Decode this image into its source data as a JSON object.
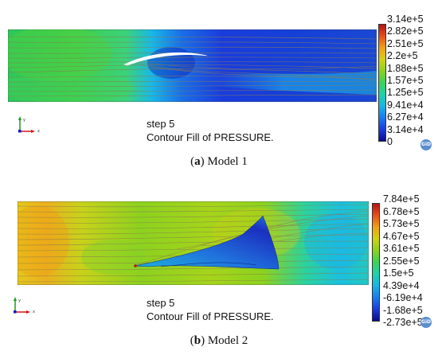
{
  "model1": {
    "step_label": "step 5",
    "contour_label": "Contour Fill of PRESSURE.",
    "colorbar_labels": [
      "3.14e+5",
      "2.82e+5",
      "2.51e+5",
      "2.2e+5",
      "1.88e+5",
      "1.57e+5",
      "1.25e+5",
      "9.41e+4",
      "6.27e+4",
      "3.14e+4",
      "0"
    ],
    "caption_letter": "a",
    "caption_text": " Model 1"
  },
  "model2": {
    "step_label": "step 5",
    "contour_label": "Contour Fill of PRESSURE.",
    "colorbar_labels": [
      "7.84e+5",
      "6.78e+5",
      "5.73e+5",
      "4.67e+5",
      "3.61e+5",
      "2.55e+5",
      "1.5e+5",
      "4.39e+4",
      "-6.19e+4",
      "-1.68e+5",
      "-2.73e+5"
    ],
    "caption_letter": "b",
    "caption_text": " Model 2"
  },
  "axis_labels": {
    "y": "y",
    "x": "x"
  },
  "logo_text": "GiD",
  "colors": {
    "colormap": [
      "#0a0a8c",
      "#1a3cdc",
      "#1a7cf0",
      "#19b4e6",
      "#1ed2a8",
      "#3cd25a",
      "#8cd21e",
      "#d2d214",
      "#f0a014",
      "#e6501e",
      "#b41414"
    ]
  }
}
